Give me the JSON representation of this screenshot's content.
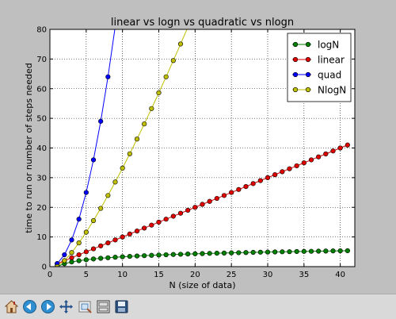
{
  "chart_data": {
    "type": "line",
    "title": "linear vs logn vs quadratic vs nlogn",
    "xlabel": "N (size of data)",
    "ylabel": "time to run or number of steps needed",
    "xlim": [
      0,
      42
    ],
    "ylim": [
      0,
      80
    ],
    "xticks": [
      0,
      5,
      10,
      15,
      20,
      25,
      30,
      35,
      40
    ],
    "yticks": [
      0,
      10,
      20,
      30,
      40,
      50,
      60,
      70,
      80
    ],
    "grid": true,
    "legend_position": "top-right",
    "series": [
      {
        "name": "logN",
        "color": "#007f00",
        "x": [
          1,
          2,
          3,
          4,
          5,
          6,
          7,
          8,
          9,
          10,
          11,
          12,
          13,
          14,
          15,
          16,
          17,
          18,
          19,
          20,
          21,
          22,
          23,
          24,
          25,
          26,
          27,
          28,
          29,
          30,
          31,
          32,
          33,
          34,
          35,
          36,
          37,
          38,
          39,
          40,
          41
        ],
        "y": [
          0.0,
          1.0,
          1.58,
          2.0,
          2.32,
          2.58,
          2.81,
          3.0,
          3.17,
          3.32,
          3.46,
          3.58,
          3.7,
          3.81,
          3.91,
          4.0,
          4.09,
          4.17,
          4.25,
          4.32,
          4.39,
          4.46,
          4.52,
          4.58,
          4.64,
          4.7,
          4.75,
          4.81,
          4.86,
          4.91,
          4.95,
          5.0,
          5.04,
          5.09,
          5.13,
          5.17,
          5.21,
          5.25,
          5.29,
          5.32,
          5.36
        ]
      },
      {
        "name": "linear",
        "color": "#e00000",
        "x": [
          1,
          2,
          3,
          4,
          5,
          6,
          7,
          8,
          9,
          10,
          11,
          12,
          13,
          14,
          15,
          16,
          17,
          18,
          19,
          20,
          21,
          22,
          23,
          24,
          25,
          26,
          27,
          28,
          29,
          30,
          31,
          32,
          33,
          34,
          35,
          36,
          37,
          38,
          39,
          40,
          41
        ],
        "y": [
          1,
          2,
          3,
          4,
          5,
          6,
          7,
          8,
          9,
          10,
          11,
          12,
          13,
          14,
          15,
          16,
          17,
          18,
          19,
          20,
          21,
          22,
          23,
          24,
          25,
          26,
          27,
          28,
          29,
          30,
          31,
          32,
          33,
          34,
          35,
          36,
          37,
          38,
          39,
          40,
          41
        ]
      },
      {
        "name": "quad",
        "color": "#0000ff",
        "x": [
          1,
          2,
          3,
          4,
          5,
          6,
          7,
          8,
          9
        ],
        "y": [
          1,
          4,
          9,
          16,
          25,
          36,
          49,
          64,
          81
        ]
      },
      {
        "name": "NlogN",
        "color": "#bfbf00",
        "x": [
          1,
          2,
          3,
          4,
          5,
          6,
          7,
          8,
          9,
          10,
          11,
          12,
          13,
          14,
          15,
          16,
          17,
          18,
          19
        ],
        "y": [
          0.0,
          2.0,
          4.75,
          8.0,
          11.61,
          15.51,
          19.65,
          24.0,
          28.53,
          33.22,
          38.05,
          43.02,
          48.11,
          53.3,
          58.6,
          64.0,
          69.49,
          75.06,
          80.71
        ]
      }
    ]
  },
  "toolbar": {
    "buttons": [
      "home-icon",
      "back-icon",
      "forward-icon",
      "pan-icon",
      "zoom-icon",
      "subplots-icon",
      "save-icon"
    ]
  }
}
